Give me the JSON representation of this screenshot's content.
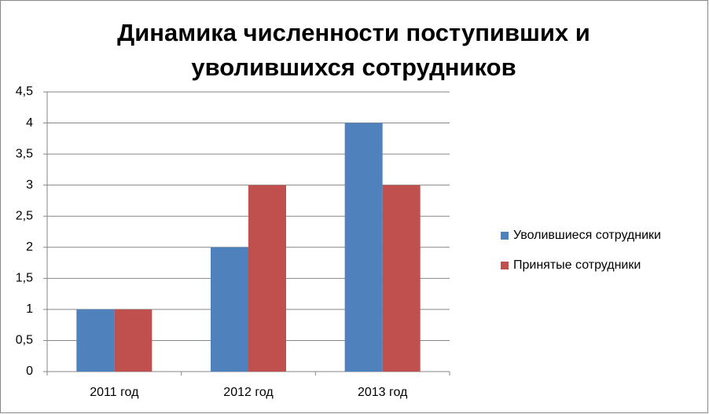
{
  "chart_data": {
    "type": "bar",
    "title": "Динамика численности поступивших и уволившихся сотрудников",
    "categories": [
      "2011 год",
      "2012 год",
      "2013 год"
    ],
    "series": [
      {
        "name": "Уволившиеся сотрудники",
        "color": "#4f81bd",
        "values": [
          1,
          2,
          4
        ]
      },
      {
        "name": "Принятые сотрудники",
        "color": "#c0504d",
        "values": [
          1,
          3,
          3
        ]
      }
    ],
    "ylim": [
      0,
      4.5
    ],
    "yticks": [
      0,
      {
        "value": 0.5,
        "label": "0,5"
      },
      1,
      {
        "value": 1.5,
        "label": "1,5"
      },
      2,
      {
        "value": 2.5,
        "label": "2,5"
      },
      3,
      {
        "value": 3.5,
        "label": "3,5"
      },
      4,
      {
        "value": 4.5,
        "label": "4,5"
      }
    ],
    "grid": true,
    "legend": "right"
  }
}
